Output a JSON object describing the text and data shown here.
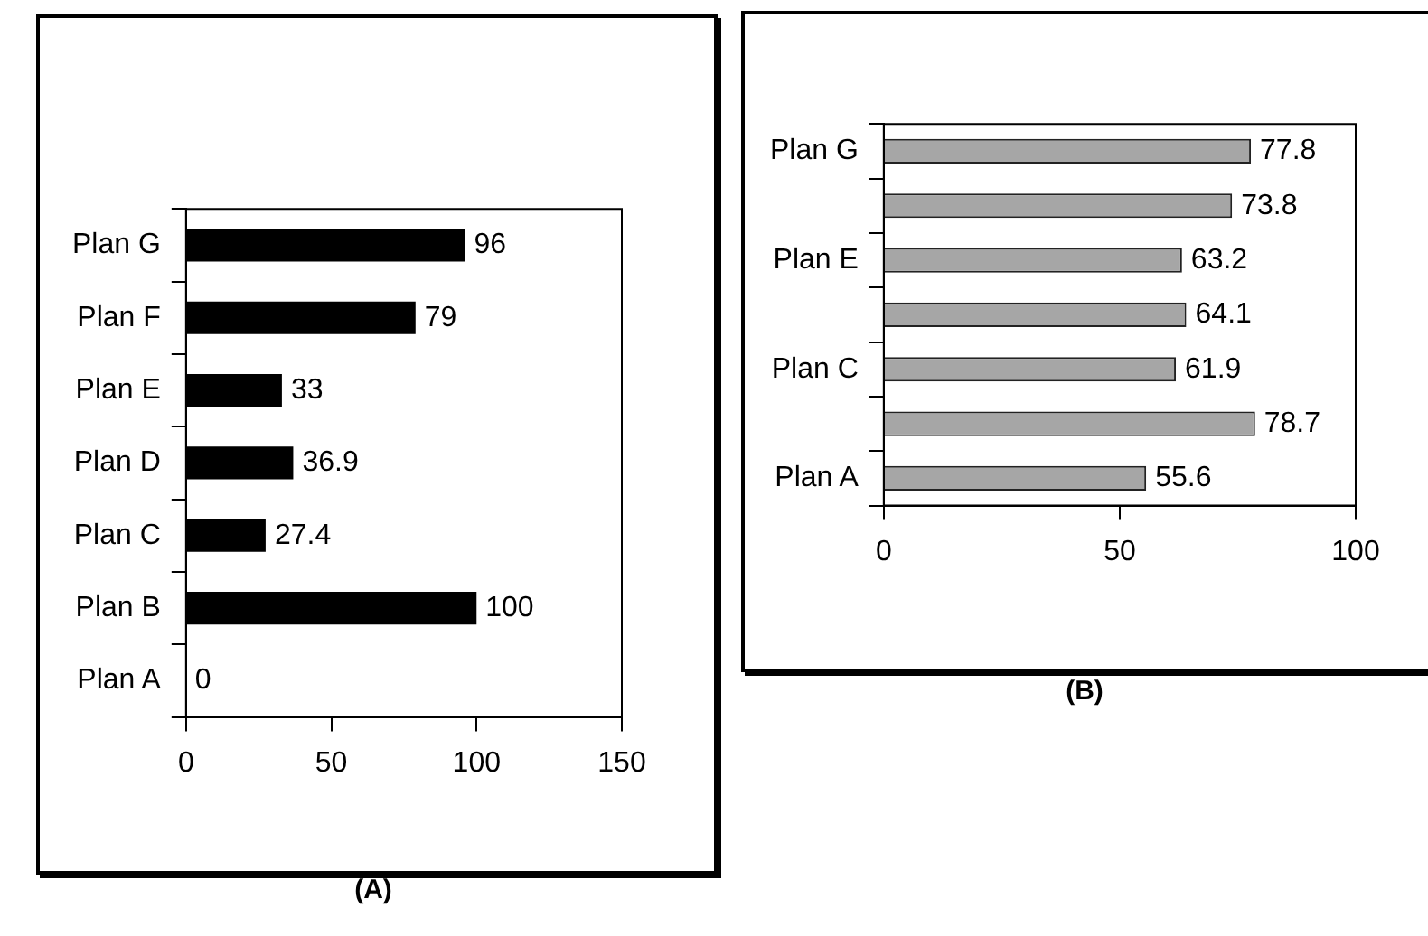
{
  "chart_data": [
    {
      "type": "bar",
      "orientation": "horizontal",
      "title": "(A)",
      "categories": [
        "Plan G",
        "Plan F",
        "Plan E",
        "Plan D",
        "Plan C",
        "Plan B",
        "Plan A"
      ],
      "values": [
        96,
        79,
        33,
        36.9,
        27.4,
        100,
        0
      ],
      "color": "#000000",
      "xlim": [
        0,
        150
      ],
      "xticks": [
        0,
        50,
        100,
        150
      ],
      "data_labels": true
    },
    {
      "type": "bar",
      "orientation": "horizontal",
      "title": "(B)",
      "categories": [
        "Plan G",
        null,
        "Plan E",
        null,
        "Plan C",
        null,
        "Plan A"
      ],
      "values": [
        77.8,
        73.8,
        63.2,
        64.1,
        61.9,
        78.7,
        55.6
      ],
      "color": "#a6a6a6",
      "xlim": [
        0,
        100
      ],
      "xticks": [
        0,
        50,
        100
      ],
      "data_labels": true
    }
  ]
}
